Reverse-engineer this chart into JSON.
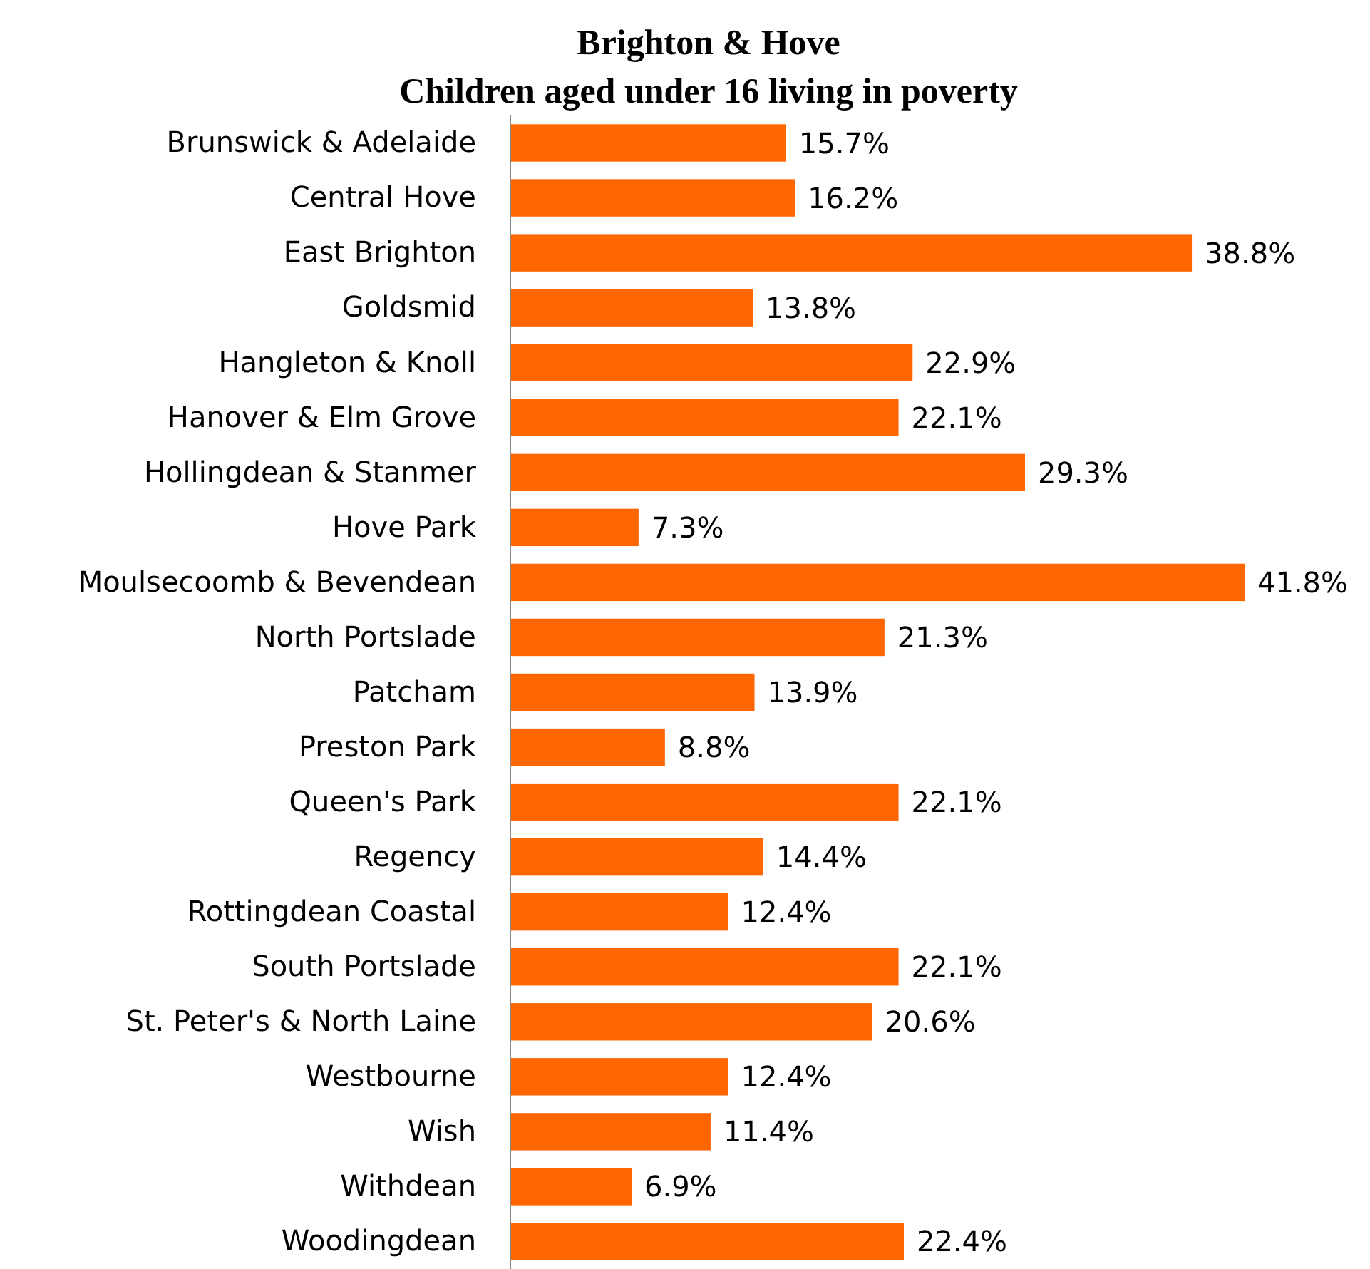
{
  "chart_data": {
    "type": "bar",
    "orientation": "horizontal",
    "title": "Brighton & Hove",
    "subtitle": "Children aged under 16 living in poverty",
    "categories": [
      "Brunswick & Adelaide",
      "Central Hove",
      "East Brighton",
      "Goldsmid",
      "Hangleton & Knoll",
      "Hanover & Elm Grove",
      "Hollingdean & Stanmer",
      "Hove Park",
      "Moulsecoomb & Bevendean",
      "North Portslade",
      "Patcham",
      "Preston Park",
      "Queen's Park",
      "Regency",
      "Rottingdean Coastal",
      "South Portslade",
      "St. Peter's & North Laine",
      "Westbourne",
      "Wish",
      "Withdean",
      "Woodingdean"
    ],
    "values": [
      15.7,
      16.2,
      38.8,
      13.8,
      22.9,
      22.1,
      29.3,
      7.3,
      41.8,
      21.3,
      13.9,
      8.8,
      22.1,
      14.4,
      12.4,
      22.1,
      20.6,
      12.4,
      11.4,
      6.9,
      22.4
    ],
    "value_labels": [
      "15.7%",
      "16.2%",
      "38.8%",
      "13.8%",
      "22.9%",
      "22.1%",
      "29.3%",
      "7.3%",
      "41.8%",
      "21.3%",
      "13.9%",
      "8.8%",
      "22.1%",
      "14.4%",
      "12.4%",
      "22.1%",
      "20.6%",
      "12.4%",
      "11.4%",
      "6.9%",
      "22.4%"
    ],
    "color": "#ff6600"
  }
}
